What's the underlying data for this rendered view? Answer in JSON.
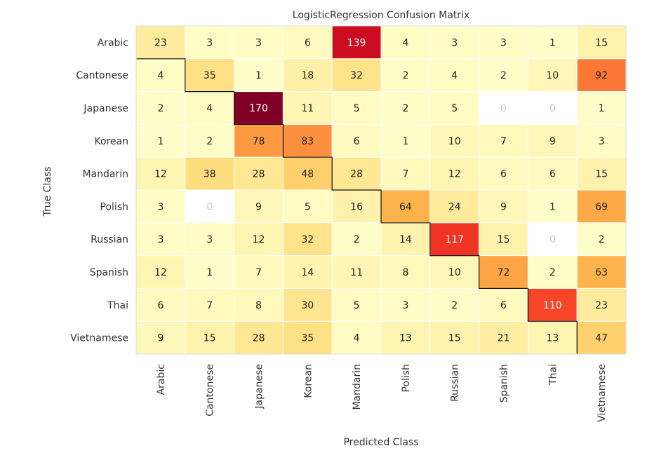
{
  "chart_data": {
    "type": "heatmap",
    "title": "LogisticRegression Confusion Matrix",
    "xlabel": "Predicted Class",
    "ylabel": "True Class",
    "row_labels": [
      "Arabic",
      "Cantonese",
      "Japanese",
      "Korean",
      "Mandarin",
      "Polish",
      "Russian",
      "Spanish",
      "Thai",
      "Vietnamese"
    ],
    "col_labels": [
      "Arabic",
      "Cantonese",
      "Japanese",
      "Korean",
      "Mandarin",
      "Polish",
      "Russian",
      "Spanish",
      "Thai",
      "Vietnamese"
    ],
    "values": [
      [
        23,
        3,
        3,
        6,
        139,
        4,
        3,
        3,
        1,
        15
      ],
      [
        4,
        35,
        1,
        18,
        32,
        2,
        4,
        2,
        10,
        92
      ],
      [
        2,
        4,
        170,
        11,
        5,
        2,
        5,
        0,
        0,
        1
      ],
      [
        1,
        2,
        78,
        83,
        6,
        1,
        10,
        7,
        9,
        3
      ],
      [
        12,
        38,
        28,
        48,
        28,
        7,
        12,
        6,
        6,
        15
      ],
      [
        3,
        0,
        9,
        5,
        16,
        64,
        24,
        9,
        1,
        69
      ],
      [
        3,
        3,
        12,
        32,
        2,
        14,
        117,
        15,
        0,
        2
      ],
      [
        12,
        1,
        7,
        14,
        11,
        8,
        10,
        72,
        2,
        63
      ],
      [
        6,
        7,
        8,
        30,
        5,
        3,
        2,
        6,
        110,
        23
      ],
      [
        9,
        15,
        28,
        35,
        4,
        13,
        15,
        21,
        13,
        47
      ]
    ],
    "colormap": "YlOrRd",
    "zero_cell_color": "#ffffff",
    "diagonal_outlined": true
  }
}
